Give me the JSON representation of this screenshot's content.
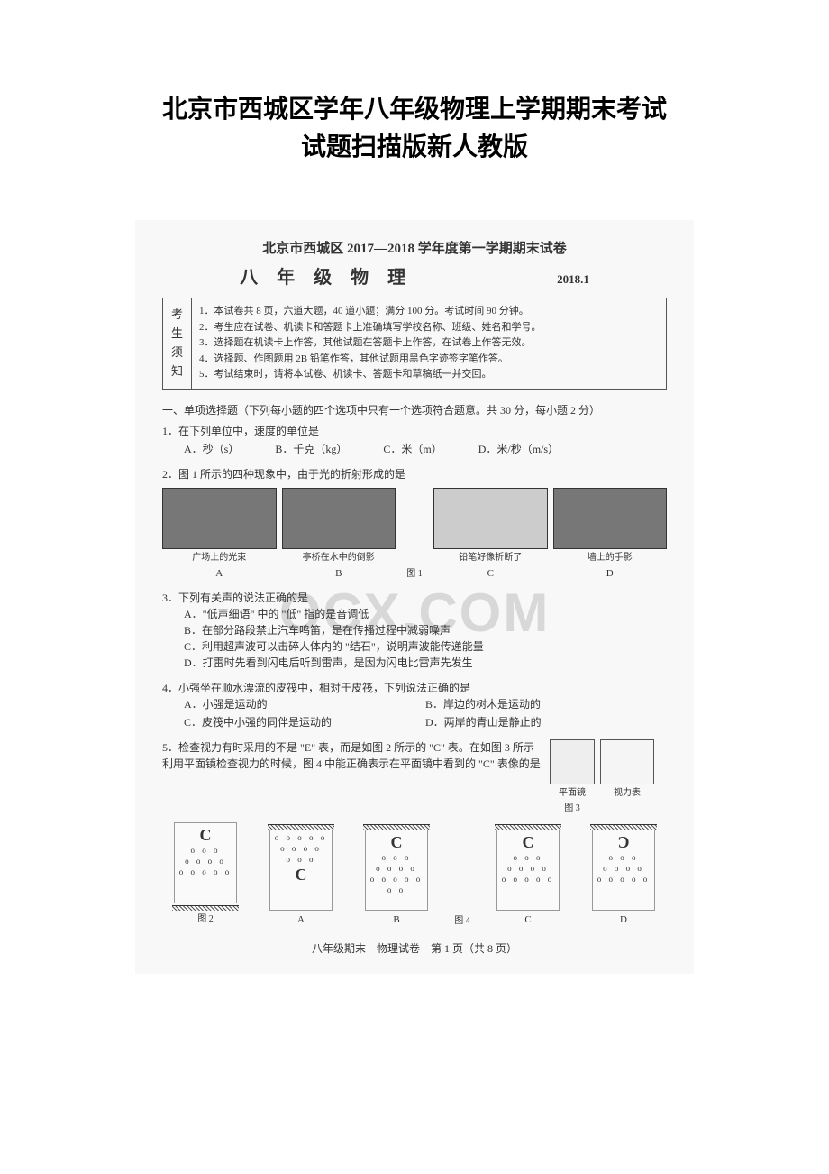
{
  "outer_title_line1": "北京市西城区学年八年级物理上学期期末考试",
  "outer_title_line2": "试题扫描版新人教版",
  "watermark": "OCX.COM",
  "exam_header": "北京市西城区 2017—2018 学年度第一学期期末试卷",
  "subject": "八 年 级 物 理",
  "date": "2018.1",
  "notice_label_chars": [
    "考",
    "生",
    "须",
    "知"
  ],
  "notice_items": [
    "1．本试卷共 8 页，六道大题，40 道小题；满分 100 分。考试时间 90 分钟。",
    "2．考生应在试卷、机读卡和答题卡上准确填写学校名称、班级、姓名和学号。",
    "3．选择题在机读卡上作答，其他试题在答题卡上作答，在试卷上作答无效。",
    "4．选择题、作图题用 2B 铅笔作答，其他试题用黑色字迹签字笔作答。",
    "5．考试结束时，请将本试卷、机读卡、答题卡和草稿纸一并交回。"
  ],
  "section1_title": "一、单项选择题（下列每小题的四个选项中只有一个选项符合题意。共 30 分，每小题 2 分）",
  "q1": {
    "stem": "1．在下列单位中，速度的单位是",
    "options": [
      "A．秒（s）",
      "B．千克（kg）",
      "C．米（m）",
      "D．米/秒（m/s）"
    ]
  },
  "q2": {
    "stem": "2．图 1 所示的四种现象中，由于光的折射形成的是",
    "captions": [
      "广场上的光束",
      "亭桥在水中的倒影",
      "铅笔好像折断了",
      "墙上的手影"
    ],
    "labels": [
      "A",
      "B",
      "C",
      "D"
    ],
    "fig": "图 1"
  },
  "q3": {
    "stem": "3．下列有关声的说法正确的是",
    "options": [
      "A．\"低声细语\" 中的 \"低\" 指的是音调低",
      "B．在部分路段禁止汽车鸣笛，是在传播过程中减弱噪声",
      "C．利用超声波可以击碎人体内的 \"结石\"，说明声波能传递能量",
      "D．打雷时先看到闪电后听到雷声，是因为闪电比雷声先发生"
    ]
  },
  "q4": {
    "stem": "4．小强坐在顺水漂流的皮筏中，相对于皮筏，下列说法正确的是",
    "options": [
      "A．小强是运动的",
      "B．岸边的树木是运动的",
      "C．皮筏中小强的同伴是运动的",
      "D．两岸的青山是静止的"
    ]
  },
  "q5": {
    "stem": "5．检查视力有时采用的不是 \"E\" 表，而是如图 2 所示的 \"C\" 表。在如图 3 所示利用平面镜检查视力的时候，图 4 中能正确表示在平面镜中看到的 \"C\" 表像的是",
    "side_labels": [
      "平面镜",
      "视力表"
    ],
    "labels": [
      "A",
      "B",
      "C",
      "D"
    ],
    "fig2": "图 2",
    "fig3": "图 3",
    "fig4": "图 4"
  },
  "footer": "八年级期末　物理试卷　第 1 页（共 8 页）"
}
